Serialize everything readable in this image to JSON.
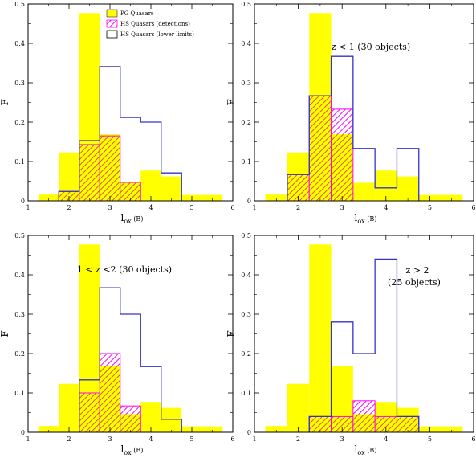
{
  "colors": {
    "pg_fill": "#ffff00",
    "hs_det_fill": "#ff00ff",
    "hs_det_stroke": "#ff00ff",
    "hs_lower_stroke": "#3333cc",
    "overlap": "#e07a2a",
    "axis": "#000000"
  },
  "legend": [
    {
      "key": "pg",
      "label": "PG Quasars"
    },
    {
      "key": "det",
      "label": "HS Quasars (detections)"
    },
    {
      "key": "low",
      "label": "HS Quasars (lower limits)"
    }
  ],
  "chart_data": [
    {
      "type": "bar",
      "panel": "top-left",
      "xlabel": "l",
      "xlabel_sub": "ox",
      "xlabel_unit": "(B)",
      "ylabel": "F",
      "xlim": [
        1,
        6
      ],
      "ylim": [
        0,
        0.5
      ],
      "x_ticks": [
        "1",
        "2",
        "3",
        "4",
        "5",
        "6"
      ],
      "y_ticks": [
        "0",
        "0.1",
        "0.2",
        "0.3",
        "0.4",
        "0.5"
      ],
      "bin_edges": [
        1.25,
        1.75,
        2.25,
        2.75,
        3.25,
        3.75,
        4.25,
        4.75,
        5.25,
        5.75
      ],
      "annotation": "",
      "legend_position": "top-center",
      "series": [
        {
          "key": "pg",
          "name": "PG Quasars",
          "values": [
            0.016,
            0.123,
            0.477,
            0.169,
            0.046,
            0.077,
            0.062,
            0.015,
            0.015
          ]
        },
        {
          "key": "det",
          "name": "HS Quasars (detections)",
          "values": [
            0,
            0.024,
            0.143,
            0.165,
            0.047,
            0,
            0,
            0,
            0
          ]
        },
        {
          "key": "low",
          "name": "HS Quasars (lower limits)",
          "values": [
            0,
            0.024,
            0.153,
            0.341,
            0.212,
            0.2,
            0.071,
            0,
            0
          ]
        }
      ]
    },
    {
      "type": "bar",
      "panel": "top-right",
      "xlabel": "l",
      "xlabel_sub": "ox",
      "xlabel_unit": "(B)",
      "ylabel": "F",
      "xlim": [
        1,
        6
      ],
      "ylim": [
        0,
        0.5
      ],
      "x_ticks": [
        "1",
        "2",
        "3",
        "4",
        "5",
        "6"
      ],
      "y_ticks": [
        "0",
        "0.1",
        "0.2",
        "0.3",
        "0.4",
        "0.5"
      ],
      "bin_edges": [
        1.25,
        1.75,
        2.25,
        2.75,
        3.25,
        3.75,
        4.25,
        4.75,
        5.25,
        5.75
      ],
      "annotation": "z < 1 (30 objects)",
      "series": [
        {
          "key": "pg",
          "name": "PG Quasars",
          "values": [
            0.016,
            0.123,
            0.477,
            0.169,
            0.046,
            0.077,
            0.062,
            0.015,
            0.015
          ]
        },
        {
          "key": "det",
          "name": "HS Quasars (detections)",
          "values": [
            0,
            0.067,
            0.267,
            0.233,
            0,
            0,
            0,
            0,
            0
          ]
        },
        {
          "key": "low",
          "name": "HS Quasars (lower limits)",
          "values": [
            0,
            0.067,
            0.267,
            0.367,
            0.133,
            0.033,
            0.133,
            0,
            0
          ]
        }
      ]
    },
    {
      "type": "bar",
      "panel": "bottom-left",
      "xlabel": "l",
      "xlabel_sub": "ox",
      "xlabel_unit": "(B)",
      "ylabel": "F",
      "xlim": [
        1,
        6
      ],
      "ylim": [
        0,
        0.5
      ],
      "x_ticks": [
        "1",
        "2",
        "3",
        "4",
        "5",
        "6"
      ],
      "y_ticks": [
        "0",
        "0.1",
        "0.2",
        "0.3",
        "0.4",
        "0.5"
      ],
      "bin_edges": [
        1.25,
        1.75,
        2.25,
        2.75,
        3.25,
        3.75,
        4.25,
        4.75,
        5.25,
        5.75
      ],
      "annotation": "1 < z <2 (30 objects)",
      "series": [
        {
          "key": "pg",
          "name": "PG Quasars",
          "values": [
            0.016,
            0.123,
            0.477,
            0.169,
            0.046,
            0.077,
            0.062,
            0.015,
            0.015
          ]
        },
        {
          "key": "det",
          "name": "HS Quasars (detections)",
          "values": [
            0,
            0,
            0.1,
            0.2,
            0.067,
            0,
            0,
            0,
            0
          ]
        },
        {
          "key": "low",
          "name": "HS Quasars (lower limits)",
          "values": [
            0,
            0,
            0.133,
            0.367,
            0.3,
            0.167,
            0.033,
            0,
            0
          ]
        }
      ]
    },
    {
      "type": "bar",
      "panel": "bottom-right",
      "xlabel": "l",
      "xlabel_sub": "ox",
      "xlabel_unit": "(B)",
      "ylabel": "F",
      "xlim": [
        1,
        6
      ],
      "ylim": [
        0,
        0.5
      ],
      "x_ticks": [
        "1",
        "2",
        "3",
        "4",
        "5",
        "6"
      ],
      "y_ticks": [
        "0",
        "0.1",
        "0.2",
        "0.3",
        "0.4",
        "0.5"
      ],
      "bin_edges": [
        1.25,
        1.75,
        2.25,
        2.75,
        3.25,
        3.75,
        4.25,
        4.75,
        5.25,
        5.75
      ],
      "annotation": "z > 2",
      "annotation2": "(25 objects)",
      "series": [
        {
          "key": "pg",
          "name": "PG Quasars",
          "values": [
            0.016,
            0.123,
            0.477,
            0.169,
            0.046,
            0.077,
            0.062,
            0.015,
            0.015
          ]
        },
        {
          "key": "det",
          "name": "HS Quasars (detections)",
          "values": [
            0,
            0,
            0.04,
            0.04,
            0.08,
            0.04,
            0.04,
            0,
            0
          ]
        },
        {
          "key": "low",
          "name": "HS Quasars (lower limits)",
          "values": [
            0,
            0,
            0.04,
            0.28,
            0.2,
            0.44,
            0.04,
            0,
            0
          ]
        }
      ]
    }
  ]
}
